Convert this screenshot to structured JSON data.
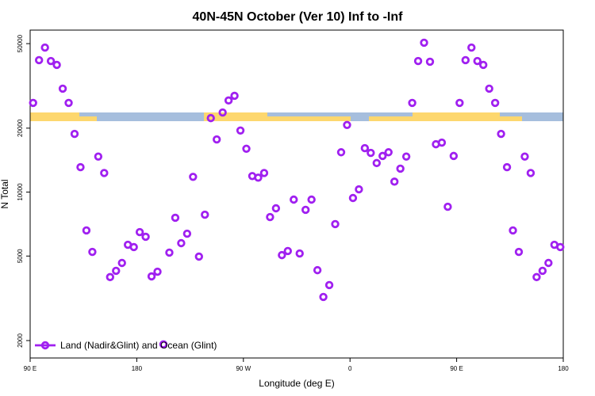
{
  "chart_data": {
    "type": "scatter",
    "title": "40N-45N October (Ver 10)   Inf to -Inf",
    "x_label": "Longitude (deg E)",
    "y_label": "N Total",
    "log_y": true,
    "series": [
      {
        "name": "Land (Nadir&Glint) and Ocean (Glint)",
        "color": "#a020f0",
        "x": [
          92.5,
          97.5,
          102.5,
          107.5,
          112.5,
          117.5,
          122.5,
          127.5,
          132.5,
          137.5,
          142.5,
          147.5,
          152.5,
          157.5,
          162.5,
          167.5,
          172.5,
          177.5,
          182.5,
          187.5,
          192.5,
          197.5,
          202.5,
          207.5,
          212.5,
          217.5,
          222.5,
          227.5,
          232.5,
          237.5,
          242.5,
          247.5,
          252.5,
          257.5,
          262.5,
          267.5,
          272.5,
          277.5,
          282.5,
          287.5,
          292.5,
          297.5,
          302.5,
          307.5,
          312.5,
          317.5,
          322.5,
          327.5,
          332.5,
          337.5,
          342.5,
          347.5,
          352.5,
          357.5,
          362.5,
          367.5,
          372.5,
          377.5,
          382.5,
          387.5,
          392.5,
          397.5,
          402.5,
          407.5,
          412.5,
          417.5,
          422.5,
          427.5,
          432.5,
          437.5,
          442.5,
          447.5,
          452.5,
          457.5,
          462.5,
          467.5,
          472.5,
          477.5,
          482.5,
          487.5,
          492.5,
          497.5,
          502.5,
          507.5,
          512.5,
          517.5,
          522.5,
          527.5,
          532.5,
          537.5
        ],
        "values": [
          26300,
          41800,
          47900,
          41400,
          39700,
          30700,
          26300,
          18800,
          13100,
          6600,
          5230,
          14700,
          12300,
          3980,
          4260,
          4640,
          5650,
          5510,
          6480,
          6160,
          4010,
          4220,
          1920,
          5190,
          7570,
          5750,
          6370,
          11800,
          4970,
          7830,
          22300,
          17700,
          23700,
          27000,
          28400,
          19500,
          16000,
          11900,
          11700,
          12300,
          7630,
          8390,
          5050,
          5280,
          9220,
          5140,
          8250,
          9220,
          4290,
          3210,
          3650,
          7070,
          15400,
          20700,
          9380,
          10300,
          16100,
          15300,
          13700,
          14800,
          15400,
          11200,
          12900,
          14700,
          26300,
          41400,
          50500,
          41100,
          16800,
          17100,
          8530,
          14800,
          26300,
          41800,
          47900,
          41400,
          39700,
          30700,
          26300,
          18800,
          13100,
          6600,
          5230,
          14700,
          12300,
          3980,
          4260,
          4640,
          5650,
          5510
        ]
      }
    ],
    "xlim": [
      90,
      540
    ],
    "xticks": [
      {
        "value": 90,
        "label": "90 E"
      },
      180,
      {
        "value": 270,
        "label": "90 W"
      },
      {
        "value": 360,
        "label": "0"
      },
      {
        "value": 450,
        "label": "90 E"
      },
      {
        "value": 540,
        "label": "180"
      }
    ],
    "ylim": [
      1656,
      57900
    ],
    "yticks": [
      2000,
      5000,
      10000,
      20000,
      50000
    ],
    "legend": "bottom-left"
  }
}
